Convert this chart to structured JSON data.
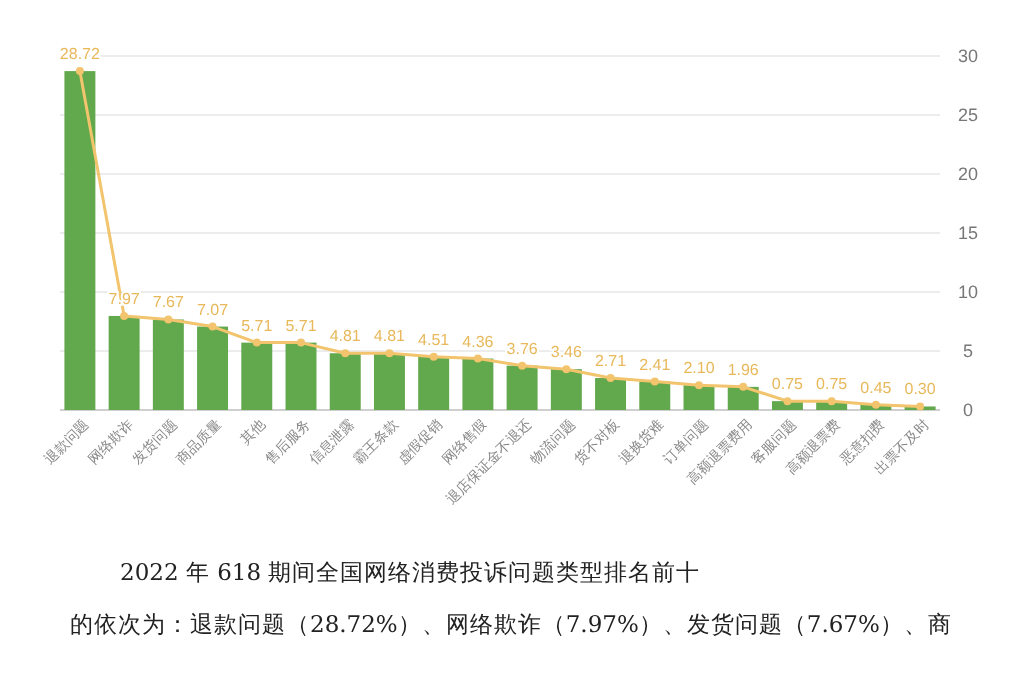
{
  "chart_data": {
    "type": "bar",
    "categories": [
      "退款问题",
      "网络欺诈",
      "发货问题",
      "商品质量",
      "其他",
      "售后服务",
      "信息泄露",
      "霸王条款",
      "虚假促销",
      "网络售假",
      "退店保证金不退还",
      "物流问题",
      "货不对板",
      "退换货难",
      "订单问题",
      "高额退票费用",
      "客服问题",
      "高额退票费",
      "恶意扣费",
      "出票不及时"
    ],
    "series": [
      {
        "color": "#62a84c",
        "values": [
          28.72,
          7.97,
          7.67,
          7.07,
          5.71,
          5.71,
          4.81,
          4.81,
          4.51,
          4.36,
          3.76,
          3.46,
          2.71,
          2.41,
          2.1,
          1.96,
          0.75,
          0.75,
          0.45,
          0.3
        ]
      },
      {
        "type": "line",
        "color": "#f2c46d",
        "marker": "circle",
        "values": [
          28.72,
          7.97,
          7.67,
          7.07,
          5.71,
          5.71,
          4.81,
          4.81,
          4.51,
          4.36,
          3.76,
          3.46,
          2.71,
          2.41,
          2.1,
          1.96,
          0.75,
          0.75,
          0.45,
          0.3
        ],
        "value_labels": [
          "28.72",
          "7.97",
          "7.67",
          "7.07",
          "5.71",
          "5.71",
          "4.81",
          "4.81",
          "4.51",
          "4.36",
          "3.76",
          "3.46",
          "2.71",
          "2.41",
          "2.10",
          "1.96",
          "0.75",
          "0.75",
          "0.45",
          "0.30"
        ]
      }
    ],
    "ylim": [
      0,
      30
    ],
    "yticks": [
      0,
      5,
      10,
      15,
      20,
      25,
      30
    ],
    "grid": "y",
    "annotations": [
      "2022 年 618 期间全国网络消费投诉问题类型排名前十",
      "的依次为：退款问题（28.72%）、网络欺诈（7.97%）、发货问题（7.67%）、商"
    ]
  }
}
